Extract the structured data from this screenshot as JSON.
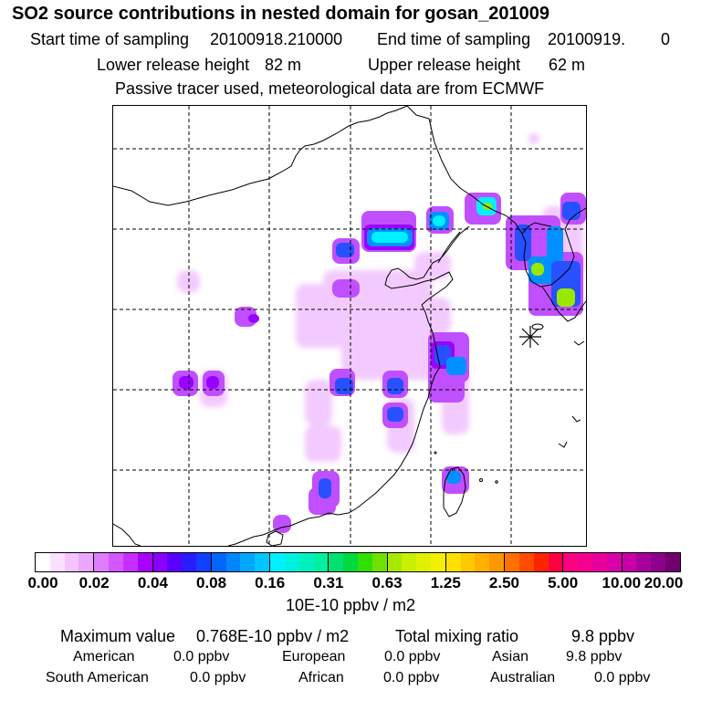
{
  "header": {
    "title": "SO2 source contributions in nested domain for gosan_201009",
    "start_label": "Start time of sampling",
    "start_value": "20100918.210000",
    "end_label": "End time of sampling",
    "end_value": "20100919.",
    "end_extra": "0",
    "lower_label": "Lower release height",
    "lower_value": "82 m",
    "upper_label": "Upper release height",
    "upper_value": "62 m",
    "tracer_note": "Passive tracer used, meteorological data are from ECMWF"
  },
  "legend": {
    "ticks": [
      "0.00",
      "0.02",
      "0.04",
      "0.08",
      "0.16",
      "0.31",
      "0.63",
      "1.25",
      "2.50",
      "5.00",
      "10.00",
      "20.00"
    ],
    "unit": "10E-10 ppbv / m2",
    "segments": [
      [
        "#ffffff",
        "#fbe0ff",
        "#f4c4ff",
        "#eba6ff"
      ],
      [
        "#e07cff",
        "#d456ff",
        "#c62eff",
        "#a800ff"
      ],
      [
        "#8a00ff",
        "#5a00ff",
        "#2a1cff",
        "#1040ff"
      ],
      [
        "#0066ff",
        "#0086ff",
        "#00a6ff",
        "#00c6ff"
      ],
      [
        "#00f0ff",
        "#00f0e0",
        "#00f0c0",
        "#00f0a0"
      ],
      [
        "#00e070",
        "#00d840",
        "#30e000",
        "#70e000"
      ],
      [
        "#a8e800",
        "#c8f000",
        "#e0f000",
        "#f4f000"
      ],
      [
        "#ffe000",
        "#ffc800",
        "#ffb000",
        "#ff9800"
      ],
      [
        "#ff7000",
        "#ff4c00",
        "#ff2400",
        "#ff0040"
      ],
      [
        "#ff0080",
        "#f40090",
        "#e8009c",
        "#d800a8"
      ],
      [
        "#c800a8",
        "#a8009a",
        "#8c008c",
        "#700070"
      ]
    ]
  },
  "summary": {
    "max_label": "Maximum value",
    "max_value": "0.768E-10 ppbv / m2",
    "total_label": "Total mixing ratio",
    "total_value": "9.8 ppbv",
    "regions": [
      {
        "name": "American",
        "value": "0.0 ppbv"
      },
      {
        "name": "European",
        "value": "0.0 ppbv"
      },
      {
        "name": "Asian",
        "value": "9.8 ppbv"
      },
      {
        "name": "South American",
        "value": "0.0 ppbv"
      },
      {
        "name": "African",
        "value": "0.0 ppbv"
      },
      {
        "name": "Australian",
        "value": "0.0 ppbv"
      }
    ]
  },
  "map": {
    "receptor_marker": "gosan-receptor-star",
    "colors": {
      "light": "#f3caff",
      "violet": "#c050ff",
      "purple": "#9a00ff",
      "blue": "#2850ff",
      "azure": "#0090ff",
      "cyan": "#00f0ff",
      "teal": "#00e8a8",
      "lime": "#9ae800"
    }
  }
}
